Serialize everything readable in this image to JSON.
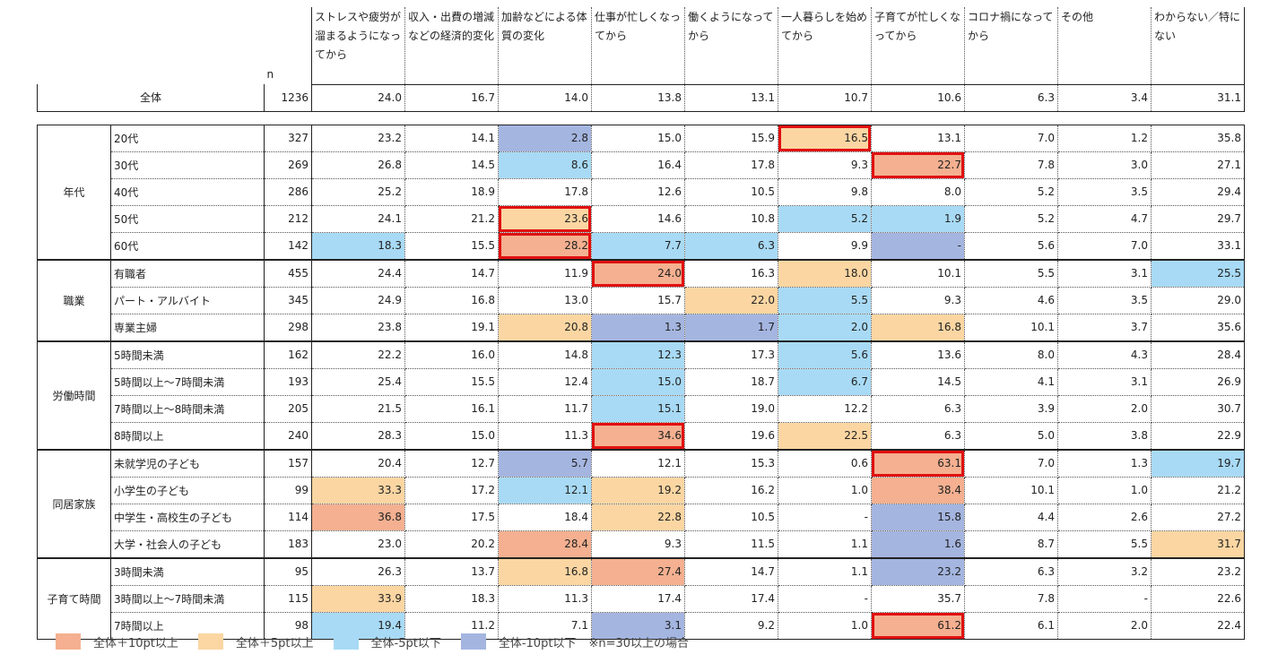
{
  "header": {
    "n_label": "n",
    "columns": [
      "ストレスや疲労が溜まるようになってから",
      "収入・出費の増減などの経済的変化",
      "加齢などによる体質の変化",
      "仕事が忙しくなってから",
      "働くようになってから",
      "一人暮らしを始めてから",
      "子育てが忙しくなってから",
      "コロナ禍になってから",
      "その他",
      "わからない／特にない"
    ]
  },
  "colors": {
    "c1": "#f4b090",
    "c2": "#fbd6a2",
    "c3": "#a8daf5",
    "c4": "#a4b5e0",
    "highlight": "#e01010"
  },
  "total": {
    "label": "全体",
    "n": "1236",
    "values": [
      "24.0",
      "16.7",
      "14.0",
      "13.8",
      "13.1",
      "10.7",
      "10.6",
      "6.3",
      "3.4",
      "31.1"
    ]
  },
  "groups": [
    {
      "label": "年代",
      "rows": [
        {
          "label": "20代",
          "n": "327",
          "values": [
            "23.2",
            "14.1",
            "2.8",
            "15.0",
            "15.9",
            "16.5",
            "13.1",
            "7.0",
            "1.2",
            "35.8"
          ],
          "colors": [
            "",
            "",
            "c4",
            "",
            "",
            "c2",
            "",
            "",
            "",
            ""
          ],
          "highlight": [
            5
          ]
        },
        {
          "label": "30代",
          "n": "269",
          "values": [
            "26.8",
            "14.5",
            "8.6",
            "16.4",
            "17.8",
            "9.3",
            "22.7",
            "7.8",
            "3.0",
            "27.1"
          ],
          "colors": [
            "",
            "",
            "c3",
            "",
            "",
            "",
            "c1",
            "",
            "",
            ""
          ],
          "highlight": [
            6
          ]
        },
        {
          "label": "40代",
          "n": "286",
          "values": [
            "25.2",
            "18.9",
            "17.8",
            "12.6",
            "10.5",
            "9.8",
            "8.0",
            "5.2",
            "3.5",
            "29.4"
          ],
          "colors": [
            "",
            "",
            "",
            "",
            "",
            "",
            "",
            "",
            "",
            ""
          ],
          "highlight": []
        },
        {
          "label": "50代",
          "n": "212",
          "values": [
            "24.1",
            "21.2",
            "23.6",
            "14.6",
            "10.8",
            "5.2",
            "1.9",
            "5.2",
            "4.7",
            "29.7"
          ],
          "colors": [
            "",
            "",
            "c2",
            "",
            "",
            "c3",
            "c3",
            "",
            "",
            ""
          ],
          "highlight": [
            2
          ]
        },
        {
          "label": "60代",
          "n": "142",
          "values": [
            "18.3",
            "15.5",
            "28.2",
            "7.7",
            "6.3",
            "9.9",
            "-",
            "5.6",
            "7.0",
            "33.1"
          ],
          "colors": [
            "c3",
            "",
            "c1",
            "c3",
            "c3",
            "",
            "c4",
            "",
            "",
            ""
          ],
          "highlight": [
            2
          ]
        }
      ]
    },
    {
      "label": "職業",
      "rows": [
        {
          "label": "有職者",
          "n": "455",
          "values": [
            "24.4",
            "14.7",
            "11.9",
            "24.0",
            "16.3",
            "18.0",
            "10.1",
            "5.5",
            "3.1",
            "25.5"
          ],
          "colors": [
            "",
            "",
            "",
            "c1",
            "",
            "c2",
            "",
            "",
            "",
            "c3"
          ],
          "highlight": [
            3
          ]
        },
        {
          "label": "パート・アルバイト",
          "n": "345",
          "values": [
            "24.9",
            "16.8",
            "13.0",
            "15.7",
            "22.0",
            "5.5",
            "9.3",
            "4.6",
            "3.5",
            "29.0"
          ],
          "colors": [
            "",
            "",
            "",
            "",
            "c2",
            "c3",
            "",
            "",
            "",
            ""
          ],
          "highlight": []
        },
        {
          "label": "専業主婦",
          "n": "298",
          "values": [
            "23.8",
            "19.1",
            "20.8",
            "1.3",
            "1.7",
            "2.0",
            "16.8",
            "10.1",
            "3.7",
            "35.6"
          ],
          "colors": [
            "",
            "",
            "c2",
            "c4",
            "c4",
            "c3",
            "c2",
            "",
            "",
            ""
          ],
          "highlight": []
        }
      ]
    },
    {
      "label": "労働時間",
      "rows": [
        {
          "label": "5時間未満",
          "n": "162",
          "values": [
            "22.2",
            "16.0",
            "14.8",
            "12.3",
            "17.3",
            "5.6",
            "13.6",
            "8.0",
            "4.3",
            "28.4"
          ],
          "colors": [
            "",
            "",
            "",
            "c3",
            "",
            "c3",
            "",
            "",
            "",
            ""
          ],
          "highlight": []
        },
        {
          "label": "5時間以上～7時間未満",
          "n": "193",
          "values": [
            "25.4",
            "15.5",
            "12.4",
            "15.0",
            "18.7",
            "6.7",
            "14.5",
            "4.1",
            "3.1",
            "26.9"
          ],
          "colors": [
            "",
            "",
            "",
            "c3",
            "",
            "c3",
            "",
            "",
            "",
            ""
          ],
          "highlight": []
        },
        {
          "label": "7時間以上～8時間未満",
          "n": "205",
          "values": [
            "21.5",
            "16.1",
            "11.7",
            "15.1",
            "19.0",
            "12.2",
            "6.3",
            "3.9",
            "2.0",
            "30.7"
          ],
          "colors": [
            "",
            "",
            "",
            "c3",
            "",
            "",
            "",
            "",
            "",
            ""
          ],
          "highlight": []
        },
        {
          "label": "8時間以上",
          "n": "240",
          "values": [
            "28.3",
            "15.0",
            "11.3",
            "34.6",
            "19.6",
            "22.5",
            "6.3",
            "5.0",
            "3.8",
            "22.9"
          ],
          "colors": [
            "",
            "",
            "",
            "c1",
            "",
            "c2",
            "",
            "",
            "",
            ""
          ],
          "highlight": [
            3
          ]
        }
      ]
    },
    {
      "label": "同居家族",
      "rows": [
        {
          "label": "未就学児の子ども",
          "n": "157",
          "values": [
            "20.4",
            "12.7",
            "5.7",
            "12.1",
            "15.3",
            "0.6",
            "63.1",
            "7.0",
            "1.3",
            "19.7"
          ],
          "colors": [
            "",
            "",
            "c4",
            "",
            "",
            "",
            "c1",
            "",
            "",
            "c3"
          ],
          "highlight": [
            6
          ]
        },
        {
          "label": "小学生の子ども",
          "n": "99",
          "values": [
            "33.3",
            "17.2",
            "12.1",
            "19.2",
            "16.2",
            "1.0",
            "38.4",
            "10.1",
            "1.0",
            "21.2"
          ],
          "colors": [
            "c2",
            "",
            "c3",
            "c2",
            "",
            "",
            "c1",
            "",
            "",
            ""
          ],
          "highlight": []
        },
        {
          "label": "中学生・高校生の子ども",
          "n": "114",
          "values": [
            "36.8",
            "17.5",
            "18.4",
            "22.8",
            "10.5",
            "-",
            "15.8",
            "4.4",
            "2.6",
            "27.2"
          ],
          "colors": [
            "c1",
            "",
            "",
            "c2",
            "",
            "",
            "c4",
            "",
            "",
            ""
          ],
          "highlight": []
        },
        {
          "label": "大学・社会人の子ども",
          "n": "183",
          "values": [
            "23.0",
            "20.2",
            "28.4",
            "9.3",
            "11.5",
            "1.1",
            "1.6",
            "8.7",
            "5.5",
            "31.7"
          ],
          "colors": [
            "",
            "",
            "c1",
            "",
            "",
            "",
            "c4",
            "",
            "",
            "c2"
          ],
          "highlight": []
        }
      ]
    },
    {
      "label": "子育て時間",
      "rows": [
        {
          "label": "3時間未満",
          "n": "95",
          "values": [
            "26.3",
            "13.7",
            "16.8",
            "27.4",
            "14.7",
            "1.1",
            "23.2",
            "6.3",
            "3.2",
            "23.2"
          ],
          "colors": [
            "",
            "",
            "c2",
            "c1",
            "",
            "",
            "c4",
            "",
            "",
            ""
          ],
          "highlight": []
        },
        {
          "label": "3時間以上～7時間未満",
          "n": "115",
          "values": [
            "33.9",
            "18.3",
            "11.3",
            "17.4",
            "17.4",
            "-",
            "35.7",
            "7.8",
            "-",
            "22.6"
          ],
          "colors": [
            "c2",
            "",
            "",
            "",
            "",
            "",
            "",
            "",
            "",
            ""
          ],
          "highlight": []
        },
        {
          "label": "7時間以上",
          "n": "98",
          "values": [
            "19.4",
            "11.2",
            "7.1",
            "3.1",
            "9.2",
            "1.0",
            "61.2",
            "6.1",
            "2.0",
            "22.4"
          ],
          "colors": [
            "c3",
            "",
            "",
            "c4",
            "",
            "",
            "c1",
            "",
            "",
            ""
          ],
          "highlight": [
            6
          ]
        }
      ]
    }
  ],
  "legend": {
    "items": [
      {
        "label": "全体＋10pt以上",
        "color": "#f4b090"
      },
      {
        "label": "全体＋5pt以上",
        "color": "#fbd6a2"
      },
      {
        "label": "全体-5pt以下",
        "color": "#a8daf5"
      },
      {
        "label": "全体-10pt以下",
        "color": "#a4b5e0"
      }
    ],
    "note": "※n=30以上の場合"
  }
}
